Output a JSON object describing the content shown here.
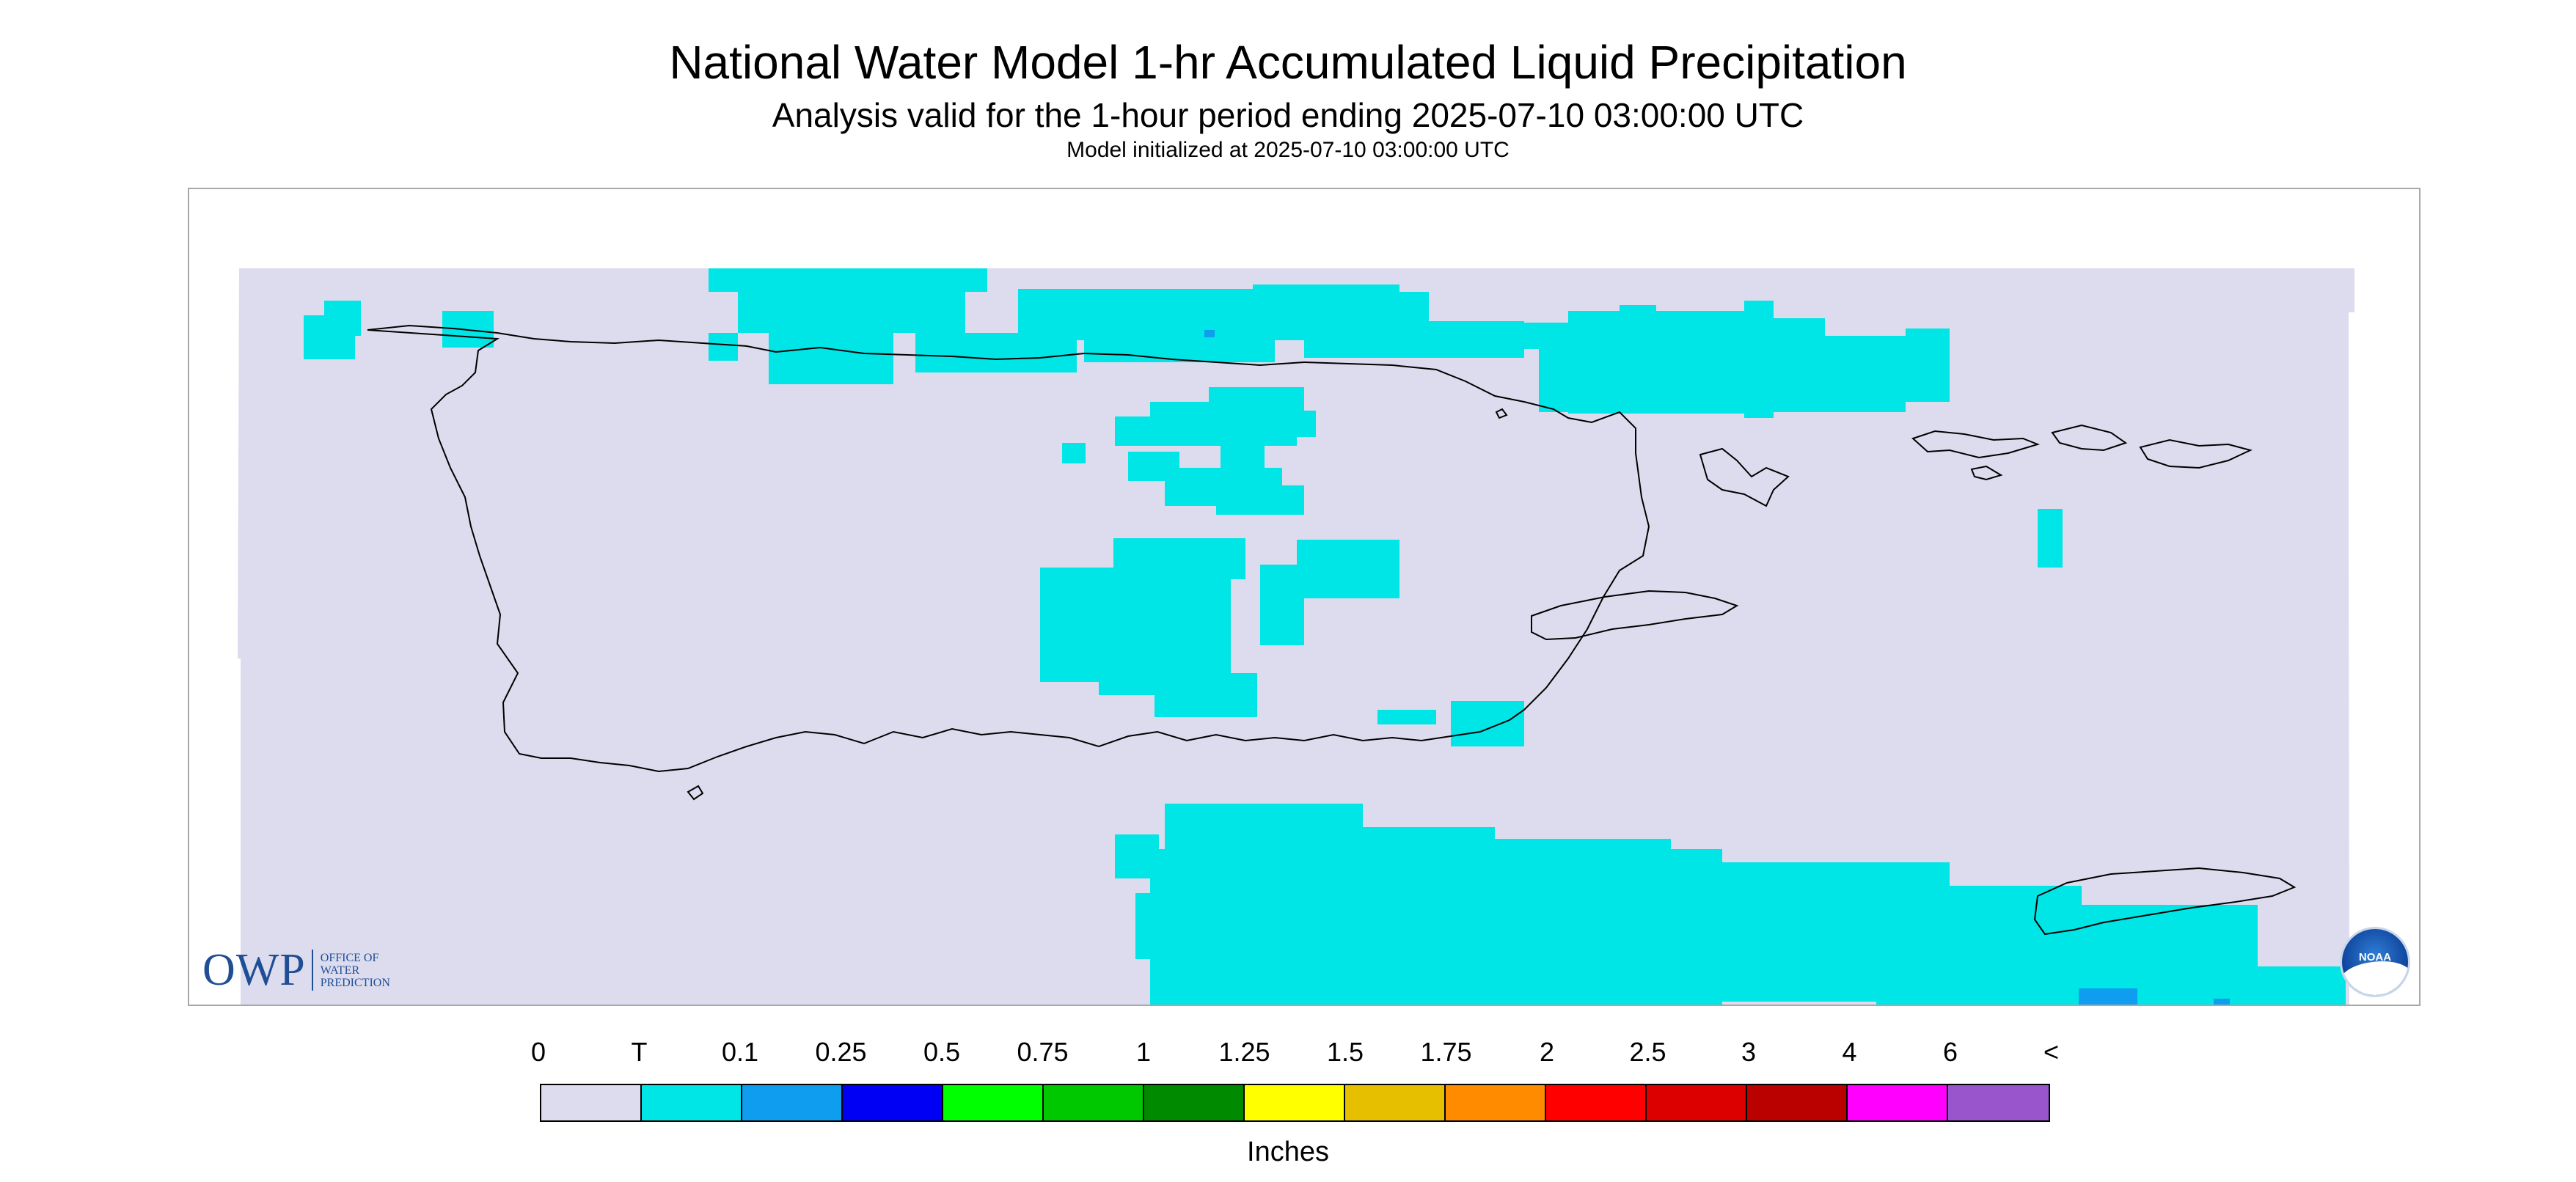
{
  "title": "National Water Model 1-hr Accumulated Liquid Precipitation",
  "subtitle": "Analysis valid for the 1-hour period ending 2025-07-10 03:00:00 UTC",
  "init_line": "Model initialized at 2025-07-10 03:00:00 UTC",
  "colors": {
    "no_precip": "#dcdcee",
    "trace": "#00e5e5",
    "coast": "#000000",
    "frame": "#a8a8a8"
  },
  "logos": {
    "owp_letters": "OWP",
    "owp_sub": [
      "OFFICE OF",
      "WATER",
      "PREDICTION"
    ],
    "noaa_text": "NOAA"
  },
  "legend": {
    "labels": [
      "0",
      "T",
      "0.1",
      "0.25",
      "0.5",
      "0.75",
      "1",
      "1.25",
      "1.5",
      "1.75",
      "2",
      "2.5",
      "3",
      "4",
      "6",
      "<"
    ],
    "colors": [
      "#dcdcee",
      "#00e5e5",
      "#0f9df0",
      "#0000f5",
      "#00ff00",
      "#00c800",
      "#008a00",
      "#ffff00",
      "#e6c000",
      "#ff8c00",
      "#ff0000",
      "#dd0000",
      "#bb0000",
      "#ff00ff",
      "#9955cc"
    ],
    "units": "Inches"
  }
}
